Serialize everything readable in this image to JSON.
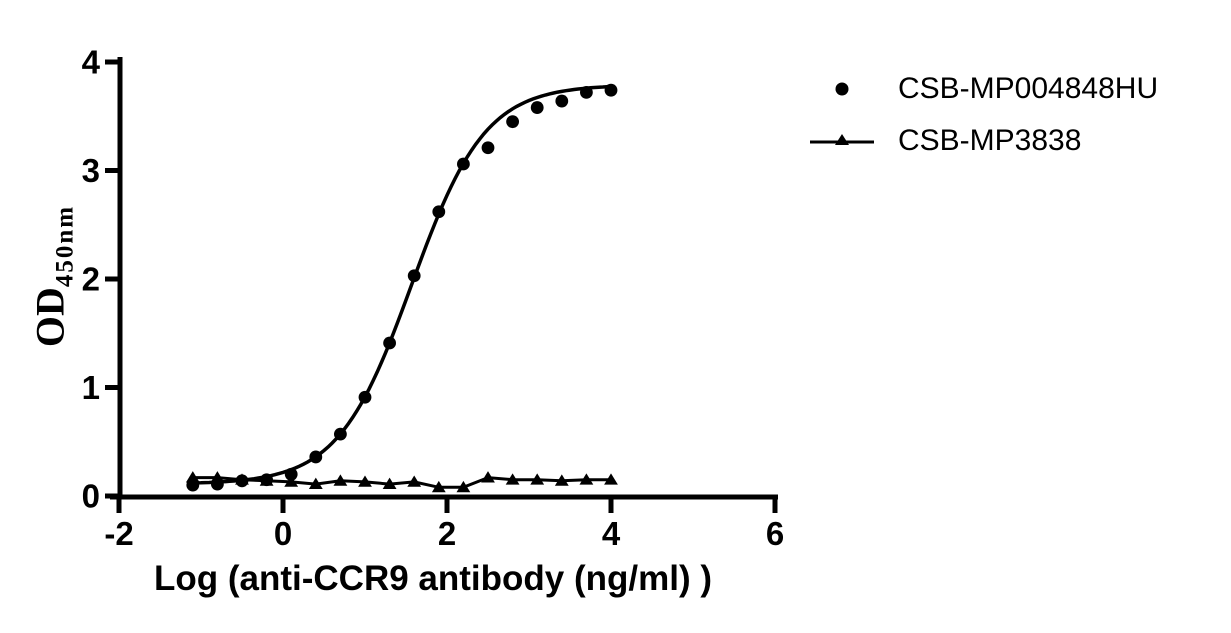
{
  "figure": {
    "background_color": "#ffffff",
    "ink_color": "#000000"
  },
  "chart_data": {
    "type": "scatter",
    "title": "",
    "xlabel": "Log (anti-CCR9 antibody (ng/ml) )",
    "ylabel": "OD",
    "ylabel_subscript": "450nm",
    "xlim": [
      -2,
      6
    ],
    "ylim": [
      0,
      4
    ],
    "x_ticks": [
      -2,
      0,
      2,
      4,
      6
    ],
    "y_ticks": [
      0,
      1,
      2,
      3,
      4
    ],
    "grid": false,
    "legend_position": "upper-right-outside",
    "x": [
      -1.1,
      -0.8,
      -0.5,
      -0.2,
      0.1,
      0.4,
      0.7,
      1.0,
      1.3,
      1.6,
      1.9,
      2.2,
      2.5,
      2.8,
      3.1,
      3.4,
      3.7,
      4.0
    ],
    "series": [
      {
        "name": "CSB-MP004848HU",
        "marker": "circle",
        "line": "logistic-fit",
        "fit": {
          "bottom": 0.11,
          "top": 3.79,
          "log_ec50": 1.57,
          "hill": 0.97,
          "x_start": -1.15,
          "x_end": 4.0
        },
        "values": [
          0.1,
          0.11,
          0.14,
          0.15,
          0.2,
          0.36,
          0.57,
          0.91,
          1.41,
          2.03,
          2.62,
          3.06,
          3.21,
          3.45,
          3.58,
          3.64,
          3.72,
          3.74
        ]
      },
      {
        "name": "CSB-MP3838",
        "marker": "triangle",
        "line": "segments",
        "values": [
          0.17,
          0.17,
          0.15,
          0.14,
          0.13,
          0.11,
          0.14,
          0.13,
          0.11,
          0.13,
          0.08,
          0.08,
          0.17,
          0.15,
          0.15,
          0.14,
          0.15,
          0.15
        ]
      }
    ]
  }
}
